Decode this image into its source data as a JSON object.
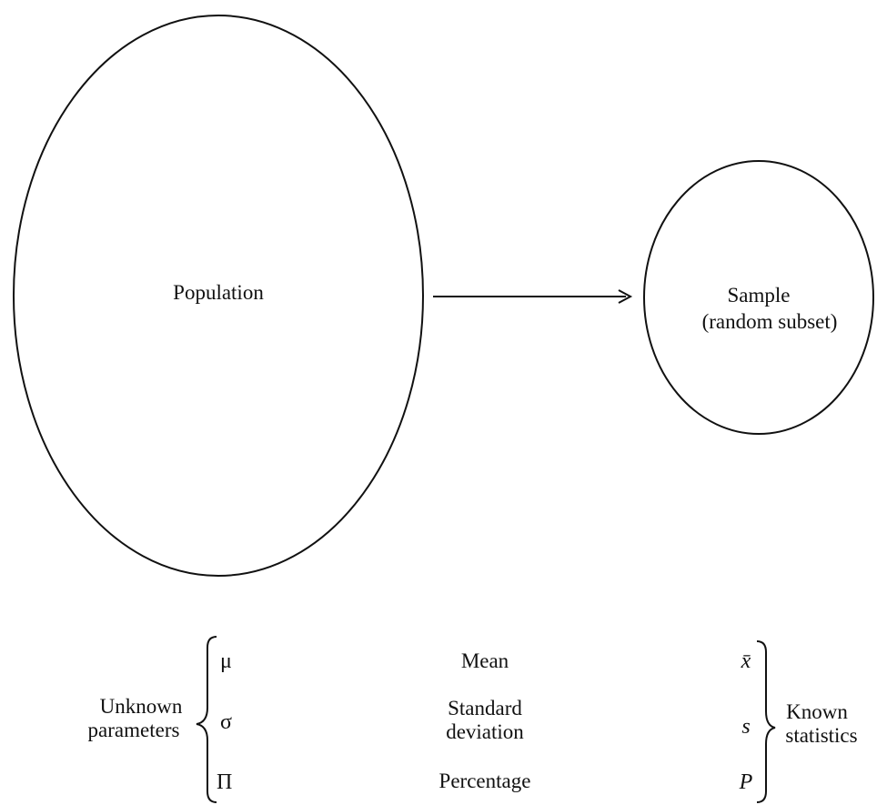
{
  "population": {
    "label": "Population"
  },
  "sample": {
    "line1": "Sample",
    "line2": "(random subset)"
  },
  "left_group": {
    "line1": "Unknown",
    "line2": "parameters"
  },
  "right_group": {
    "line1": "Known",
    "line2": "statistics"
  },
  "rows": [
    {
      "parameter": "μ",
      "name_line1": "Mean",
      "name_line2": "",
      "statistic": "x̄"
    },
    {
      "parameter": "σ",
      "name_line1": "Standard",
      "name_line2": "deviation",
      "statistic": "s"
    },
    {
      "parameter": "Π",
      "name_line1": "Percentage",
      "name_line2": "",
      "statistic": "P"
    }
  ]
}
